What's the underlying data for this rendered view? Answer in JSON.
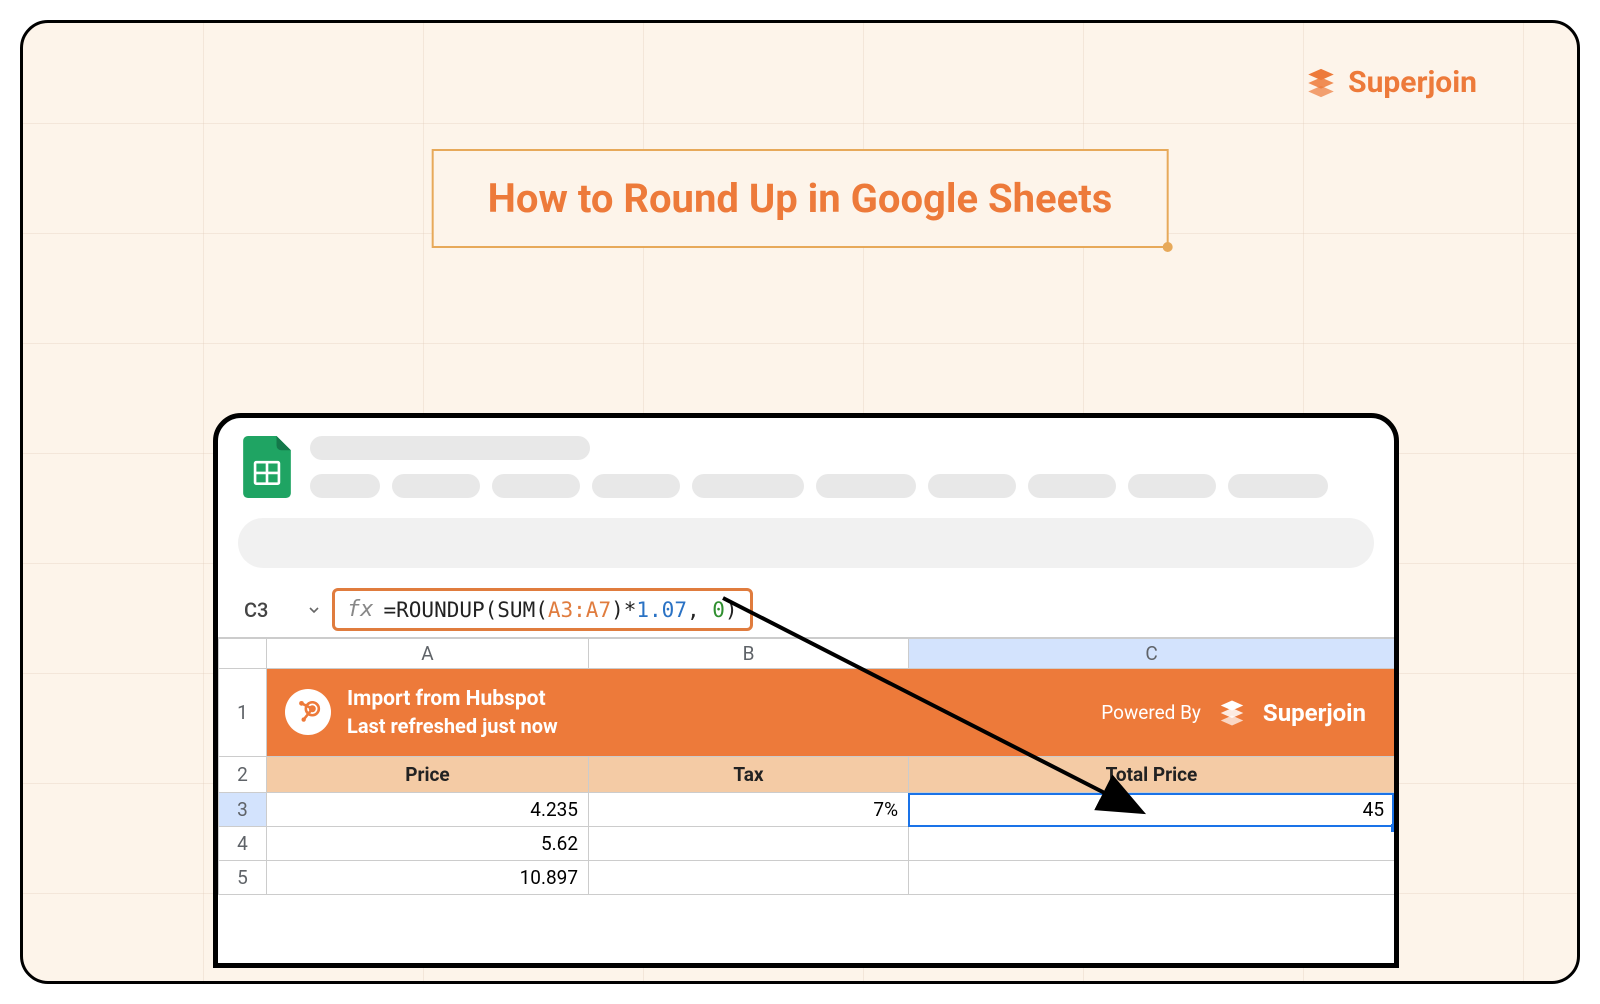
{
  "brand": {
    "name": "Superjoin",
    "color": "#ed7a3a"
  },
  "title": {
    "text": "How to Round Up in Google Sheets",
    "border_color": "#e7a95a"
  },
  "sheet": {
    "cell_ref": "C3",
    "formula": {
      "prefix": "=ROUNDUP(SUM(",
      "range": "A3:A7",
      "mid": ")*",
      "num": "1.07",
      "sep": ", ",
      "arg2": "0",
      "suffix": ")"
    },
    "columns": [
      "A",
      "B",
      "C"
    ],
    "banner": {
      "import_label": "Import from Hubspot",
      "refresh_label": "Last refreshed just now",
      "powered_label": "Powered By",
      "brand": "Superjoin"
    },
    "headers": {
      "a": "Price",
      "b": "Tax",
      "c": "Total Price"
    },
    "rows": [
      {
        "num": "3",
        "a": "4.235",
        "b": "7%",
        "c": "45"
      },
      {
        "num": "4",
        "a": "5.62",
        "b": "",
        "c": ""
      },
      {
        "num": "5",
        "a": "10.897",
        "b": "",
        "c": ""
      }
    ],
    "menu_widths": [
      70,
      88,
      88,
      88,
      112,
      100,
      88,
      88,
      88,
      100
    ]
  },
  "colors": {
    "bg": "#fdf4ea",
    "accent": "#ed7a3a",
    "header_row": "#f4cba5",
    "selected_hdr": "#d3e3fd",
    "formula_box_border": "#e07c3e",
    "selection_blue": "#1a73e8"
  }
}
